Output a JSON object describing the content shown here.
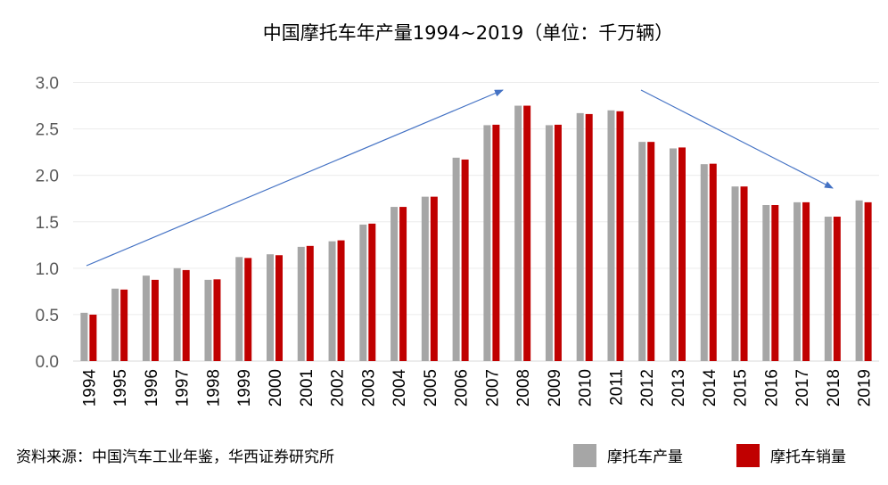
{
  "chart_data": {
    "type": "bar",
    "title": "中国摩托车年产量1994~2019（单位：千万辆）",
    "xlabel": "",
    "ylabel": "",
    "ylim": [
      0,
      3.0
    ],
    "yticks": [
      "0.0",
      "0.5",
      "1.0",
      "1.5",
      "2.0",
      "2.5",
      "3.0"
    ],
    "grid": true,
    "legend_position": "bottom-right",
    "categories": [
      "1994",
      "1995",
      "1996",
      "1997",
      "1998",
      "1999",
      "2000",
      "2001",
      "2002",
      "2003",
      "2004",
      "2005",
      "2006",
      "2007",
      "2008",
      "2009",
      "2010",
      "2011",
      "2012",
      "2013",
      "2014",
      "2015",
      "2016",
      "2017",
      "2018",
      "2019"
    ],
    "series": [
      {
        "name": "摩托车产量",
        "color": "#a6a6a6",
        "values": [
          0.52,
          0.78,
          0.92,
          1.0,
          0.875,
          1.12,
          1.15,
          1.23,
          1.29,
          1.47,
          1.66,
          1.77,
          2.19,
          2.54,
          2.75,
          2.54,
          2.67,
          2.7,
          2.36,
          2.29,
          2.12,
          1.88,
          1.68,
          1.71,
          1.555,
          1.73
        ]
      },
      {
        "name": "摩托车销量",
        "color": "#c00000",
        "values": [
          0.5,
          0.77,
          0.875,
          0.98,
          0.88,
          1.11,
          1.14,
          1.24,
          1.3,
          1.48,
          1.66,
          1.77,
          2.17,
          2.545,
          2.75,
          2.545,
          2.66,
          2.69,
          2.36,
          2.3,
          2.125,
          1.88,
          1.68,
          1.71,
          1.555,
          1.71
        ]
      }
    ],
    "annotations": [
      "rising trend arrow 1994→2008",
      "falling trend arrow 2012→2018"
    ],
    "annotation_color": "#4472c4",
    "source": "资料来源：中国汽车工业年鉴，华西证券研究所"
  }
}
